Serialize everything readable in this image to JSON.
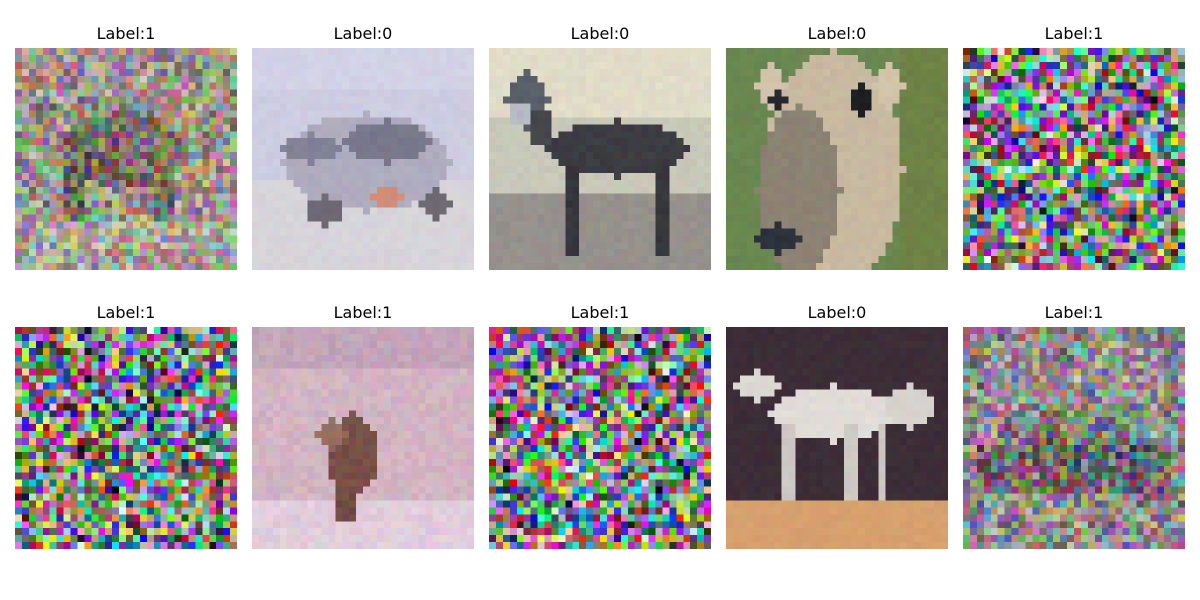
{
  "figure": {
    "panels": [
      {
        "title": "Label:1",
        "content": "noisy-photo-animal"
      },
      {
        "title": "Label:0",
        "content": "photo-car"
      },
      {
        "title": "Label:0",
        "content": "photo-horse-dark"
      },
      {
        "title": "Label:0",
        "content": "photo-deer-closeup"
      },
      {
        "title": "Label:1",
        "content": "pure-noise"
      },
      {
        "title": "Label:1",
        "content": "pure-noise"
      },
      {
        "title": "Label:1",
        "content": "photo-pinkish-animal"
      },
      {
        "title": "Label:1",
        "content": "pure-noise"
      },
      {
        "title": "Label:0",
        "content": "photo-horse-white"
      },
      {
        "title": "Label:1",
        "content": "noisy-photo-vehicle"
      }
    ]
  }
}
